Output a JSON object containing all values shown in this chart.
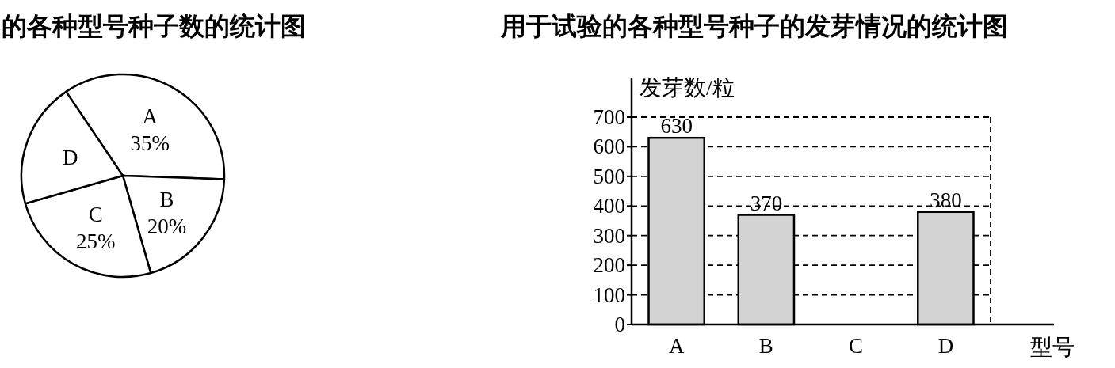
{
  "chart_data": [
    {
      "type": "pie",
      "title": "的各种型号种子数的统计图",
      "categories": [
        "A",
        "B",
        "C",
        "D"
      ],
      "values": [
        35,
        20,
        25,
        20
      ],
      "value_labels": [
        "35%",
        "20%",
        "25%",
        null
      ],
      "colors": [
        "#ffffff",
        "#ffffff",
        "#ffffff",
        "#ffffff"
      ]
    },
    {
      "type": "bar",
      "title": "用于试验的各种型号种子的发芽情况的统计图",
      "xlabel": "型号",
      "ylabel": "发芽数/粒",
      "categories": [
        "A",
        "B",
        "C",
        "D"
      ],
      "values": [
        630,
        370,
        null,
        380
      ],
      "color": "#d3d3d3",
      "ylim": [
        0,
        700
      ],
      "yticks": [
        0,
        100,
        200,
        300,
        400,
        500,
        600,
        700
      ],
      "grid": "y",
      "data_labels": true
    }
  ]
}
